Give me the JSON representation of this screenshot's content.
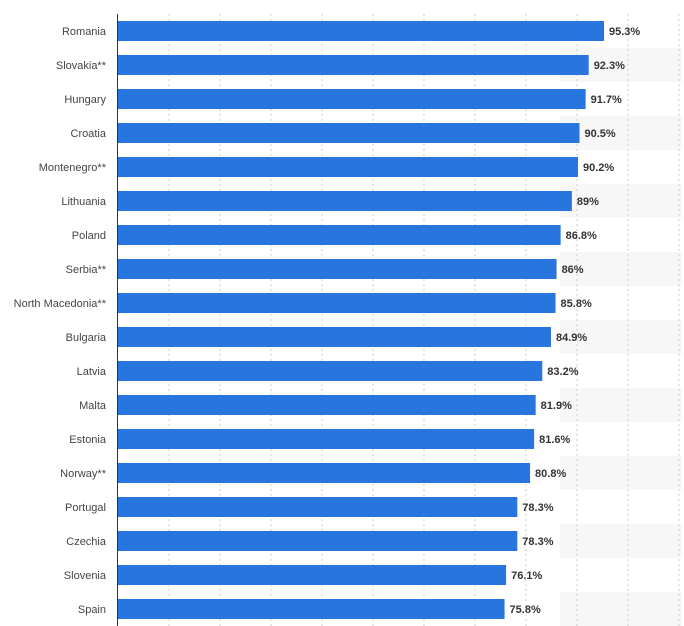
{
  "chart_data": {
    "type": "bar",
    "orientation": "horizontal",
    "categories": [
      "Romania",
      "Slovakia**",
      "Hungary",
      "Croatia",
      "Montenegro**",
      "Lithuania",
      "Poland",
      "Serbia**",
      "North Macedonia**",
      "Bulgaria",
      "Latvia",
      "Malta",
      "Estonia",
      "Norway**",
      "Portugal",
      "Czechia",
      "Slovenia",
      "Spain"
    ],
    "values": [
      95.3,
      92.3,
      91.7,
      90.5,
      90.2,
      89,
      86.8,
      86,
      85.8,
      84.9,
      83.2,
      81.9,
      81.6,
      80.8,
      78.3,
      78.3,
      76.1,
      75.8
    ],
    "value_labels": [
      "95.3%",
      "92.3%",
      "91.7%",
      "90.5%",
      "90.2%",
      "89%",
      "86.8%",
      "86%",
      "85.8%",
      "84.9%",
      "83.2%",
      "81.9%",
      "81.6%",
      "80.8%",
      "78.3%",
      "78.3%",
      "76.1%",
      "75.8%"
    ],
    "xlim": [
      0,
      110
    ],
    "grid": true,
    "colors": {
      "bar": "#2876dd",
      "band": "#f7f7f7",
      "grid": "#cccccc",
      "axis": "#333333"
    }
  }
}
